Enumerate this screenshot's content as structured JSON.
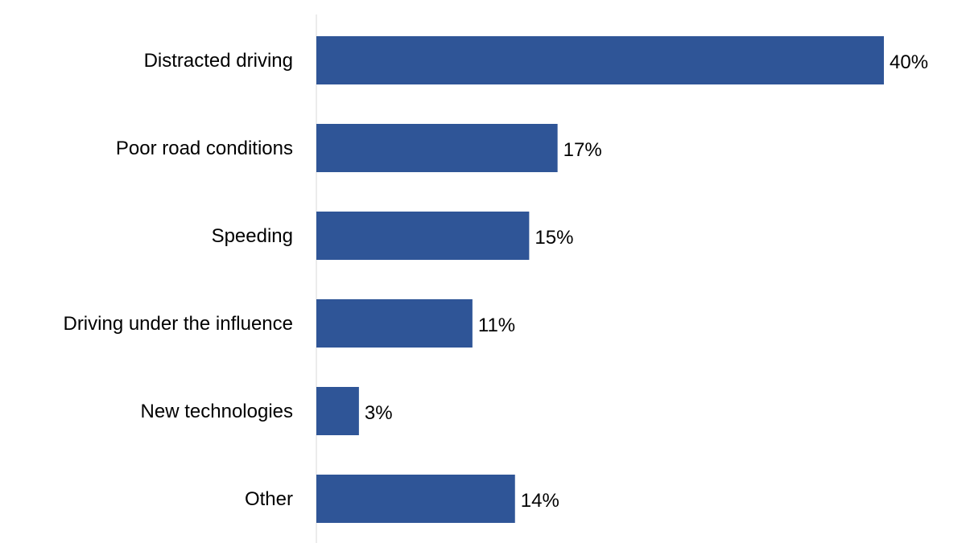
{
  "chart_data": {
    "type": "bar",
    "orientation": "horizontal",
    "categories": [
      "Distracted driving",
      "Poor road conditions",
      "Speeding",
      "Driving under the influence",
      "New technologies",
      "Other"
    ],
    "values": [
      40,
      17,
      15,
      11,
      3,
      14
    ],
    "data_labels": [
      "40%",
      "17%",
      "15%",
      "11%",
      "3%",
      "14%"
    ],
    "unit": "%",
    "title": "",
    "xlabel": "",
    "ylabel": "",
    "xlim": [
      0,
      40
    ],
    "grid": false,
    "legend": "none",
    "bar_color": "#2F5597"
  }
}
